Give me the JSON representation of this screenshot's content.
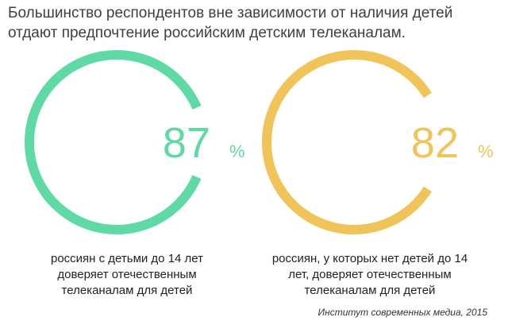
{
  "headline": {
    "line1": "Большинство респондентов вне зависимости от наличия детей",
    "line2": "отдают предпочтение российским детским телеканалам."
  },
  "chart_data": [
    {
      "type": "pie",
      "value": 87,
      "max": 100,
      "unit": "%",
      "value_text": "87",
      "unit_text": "%",
      "color": "#5fdaa5",
      "caption": [
        "россиян с детьми до 14 лет",
        "доверяет отечественным",
        "телеканалам для детей"
      ]
    },
    {
      "type": "pie",
      "value": 82,
      "max": 100,
      "unit": "%",
      "value_text": "82",
      "unit_text": "%",
      "color": "#f0c459",
      "caption": [
        "россиян, у которых нет детей до 14",
        "лет, доверяет отечественным",
        "телеканалам для детей"
      ]
    }
  ],
  "source": "Институт современных медиа, 2015"
}
